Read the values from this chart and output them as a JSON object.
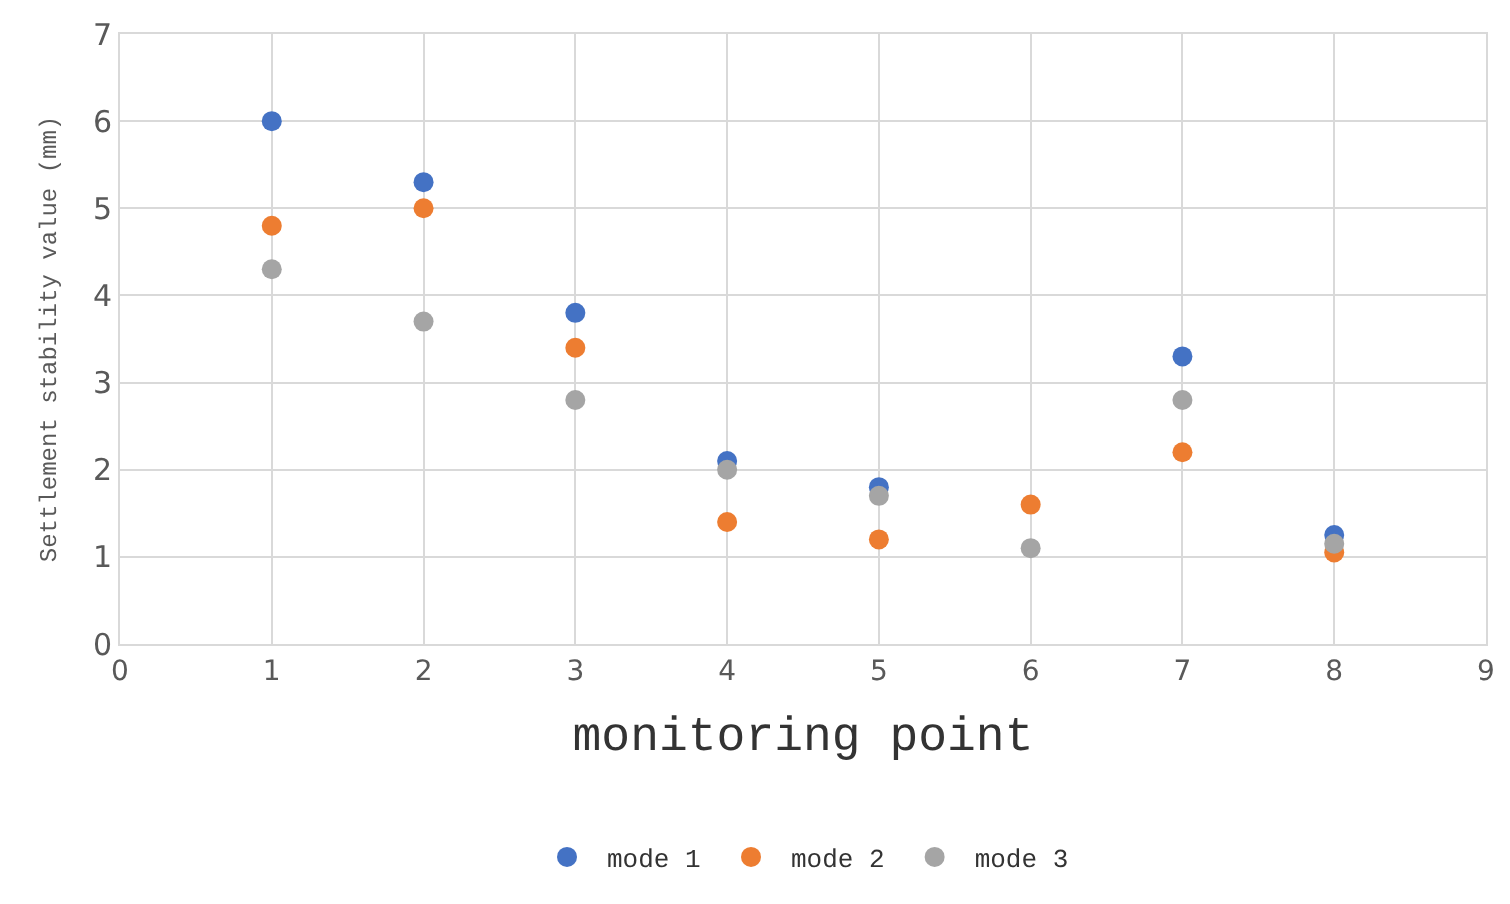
{
  "chart_data": {
    "type": "scatter",
    "xlabel": "monitoring point",
    "ylabel": "Settlement stability value (mm)",
    "x": [
      1,
      2,
      3,
      4,
      5,
      6,
      7,
      8
    ],
    "series": [
      {
        "name": "mode 1",
        "color": "#4472c4",
        "values": [
          6.0,
          5.3,
          3.8,
          2.1,
          1.8,
          null,
          3.3,
          1.25
        ]
      },
      {
        "name": "mode 2",
        "color": "#ed7d31",
        "values": [
          4.8,
          5.0,
          3.4,
          1.4,
          1.2,
          1.6,
          2.2,
          1.05
        ]
      },
      {
        "name": "mode 3",
        "color": "#a5a5a5",
        "values": [
          4.3,
          3.7,
          2.8,
          2.0,
          1.7,
          1.1,
          2.8,
          1.15
        ]
      }
    ],
    "xlim": [
      0,
      9
    ],
    "xticks": [
      0,
      1,
      2,
      3,
      4,
      5,
      6,
      7,
      8,
      9
    ],
    "ylim": [
      0,
      7
    ],
    "yticks": [
      0,
      1,
      2,
      3,
      4,
      5,
      6,
      7
    ],
    "grid": true,
    "legend": "bottom",
    "marker": "circle"
  }
}
